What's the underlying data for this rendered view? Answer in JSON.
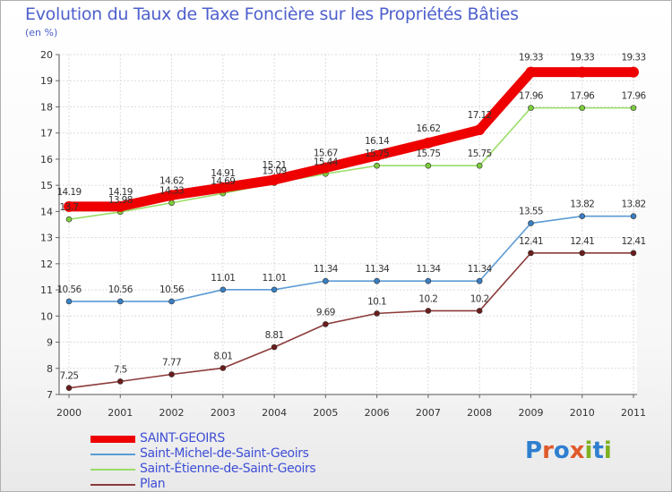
{
  "title": "Evolution du Taux de Taxe Foncière sur les Propriétés Bâties",
  "unit_label": "(en %)",
  "logo": {
    "text": "Proxiti",
    "letters": [
      "P",
      "r",
      "o",
      "x",
      "i",
      "t",
      "i"
    ],
    "colors": [
      "#2f7fd0",
      "#e05a2b",
      "#2f7fd0",
      "#e05a2b",
      "#7fb020",
      "#2f7fd0",
      "#7fb020"
    ]
  },
  "chart_data": {
    "type": "line",
    "title": "Evolution du Taux de Taxe Foncière sur les Propriétés Bâties",
    "ylabel": "(en %)",
    "xlabel": "",
    "categories": [
      "2000",
      "2001",
      "2002",
      "2003",
      "2004",
      "2005",
      "2006",
      "2007",
      "2008",
      "2009",
      "2010",
      "2011"
    ],
    "ylim": [
      7,
      20
    ],
    "yticks": [
      7,
      8,
      9,
      10,
      11,
      12,
      13,
      14,
      15,
      16,
      17,
      18,
      19,
      20
    ],
    "grid": true,
    "legend_position": "bottom-left",
    "series": [
      {
        "name": "SAINT-GEOIRS",
        "color": "#ee0000",
        "marker_color": "#ee0000",
        "emphasis": true,
        "values": [
          14.19,
          14.19,
          14.62,
          14.91,
          15.21,
          15.67,
          16.14,
          16.62,
          17.12,
          19.33,
          19.33,
          19.33
        ],
        "labels": [
          "14.19",
          "14.19",
          "14.62",
          "14.91",
          "15.21",
          "15.67",
          "16.14",
          "16.62",
          "17.12",
          "19.33",
          "19.33",
          "19.33"
        ]
      },
      {
        "name": "Saint-Michel-de-Saint-Geoirs",
        "color": "#5b9bd5",
        "marker_color": "#3a7fc4",
        "emphasis": false,
        "values": [
          10.56,
          10.56,
          10.56,
          11.01,
          11.01,
          11.34,
          11.34,
          11.34,
          11.34,
          13.55,
          13.82,
          13.82
        ],
        "labels": [
          "10.56",
          "10.56",
          "10.56",
          "11.01",
          "11.01",
          "11.34",
          "11.34",
          "11.34",
          "11.34",
          "13.55",
          "13.82",
          "13.82"
        ]
      },
      {
        "name": "Saint-Étienne-de-Saint-Geoirs",
        "color": "#99dd66",
        "marker_color": "#7dcc3c",
        "emphasis": false,
        "values": [
          13.7,
          13.98,
          14.33,
          14.69,
          15.09,
          15.44,
          15.75,
          15.75,
          15.75,
          17.96,
          17.96,
          17.96
        ],
        "labels": [
          "13.7",
          "13.98",
          "14.33",
          "14.69",
          "15.09",
          "15.44",
          "15.75",
          "15.75",
          "15.75",
          "17.96",
          "17.96",
          "17.96"
        ]
      },
      {
        "name": "Plan",
        "color": "#8c3a3a",
        "marker_color": "#6b1c1c",
        "emphasis": false,
        "values": [
          7.25,
          7.5,
          7.77,
          8.01,
          8.81,
          9.69,
          10.1,
          10.2,
          10.2,
          12.41,
          12.41,
          12.41
        ],
        "labels": [
          "7.25",
          "7.5",
          "7.77",
          "8.01",
          "8.81",
          "9.69",
          "10.1",
          "10.2",
          "10.2",
          "12.41",
          "12.41",
          "12.41"
        ]
      }
    ]
  }
}
